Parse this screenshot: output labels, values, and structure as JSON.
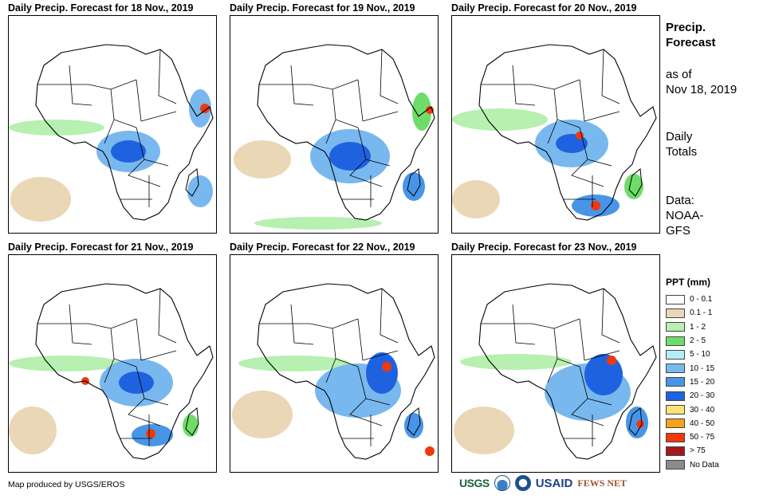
{
  "panels": [
    {
      "title": "Daily Precip. Forecast for 18 Nov., 2019"
    },
    {
      "title": "Daily Precip. Forecast for 19 Nov., 2019"
    },
    {
      "title": "Daily Precip. Forecast for 20 Nov., 2019"
    },
    {
      "title": "Daily Precip. Forecast for 21 Nov., 2019"
    },
    {
      "title": "Daily Precip. Forecast for 22 Nov., 2019"
    },
    {
      "title": "Daily Precip. Forecast for 23 Nov., 2019"
    }
  ],
  "side": {
    "title": [
      "Precip.",
      "Forecast"
    ],
    "as_of": [
      "as of",
      "Nov 18, 2019"
    ],
    "totals": [
      "Daily",
      "Totals"
    ],
    "source": [
      "Data:",
      "NOAA-",
      "GFS"
    ]
  },
  "legend": {
    "title": "PPT (mm)",
    "items": [
      {
        "label": "0 - 0.1",
        "color": "#ffffff"
      },
      {
        "label": "0.1 - 1",
        "color": "#ead7b5"
      },
      {
        "label": "1 - 2",
        "color": "#b7f0b1"
      },
      {
        "label": "2 - 5",
        "color": "#6fdc6a"
      },
      {
        "label": "5 - 10",
        "color": "#b5eef7"
      },
      {
        "label": "10 - 15",
        "color": "#78b8ee"
      },
      {
        "label": "15 - 20",
        "color": "#4895e8"
      },
      {
        "label": "20 - 30",
        "color": "#1f62e0"
      },
      {
        "label": "30 - 40",
        "color": "#fde27a"
      },
      {
        "label": "40 - 50",
        "color": "#f6a21b"
      },
      {
        "label": "50 - 75",
        "color": "#f1380c"
      },
      {
        "label": "> 75",
        "color": "#a5181a"
      },
      {
        "label": "No Data",
        "color": "#8a8a8a"
      }
    ]
  },
  "footer": {
    "credit": "Map produced by USGS/EROS",
    "logos": {
      "usgs": "USGS",
      "usaid": "USAID",
      "fews": "FEWS NET"
    }
  }
}
